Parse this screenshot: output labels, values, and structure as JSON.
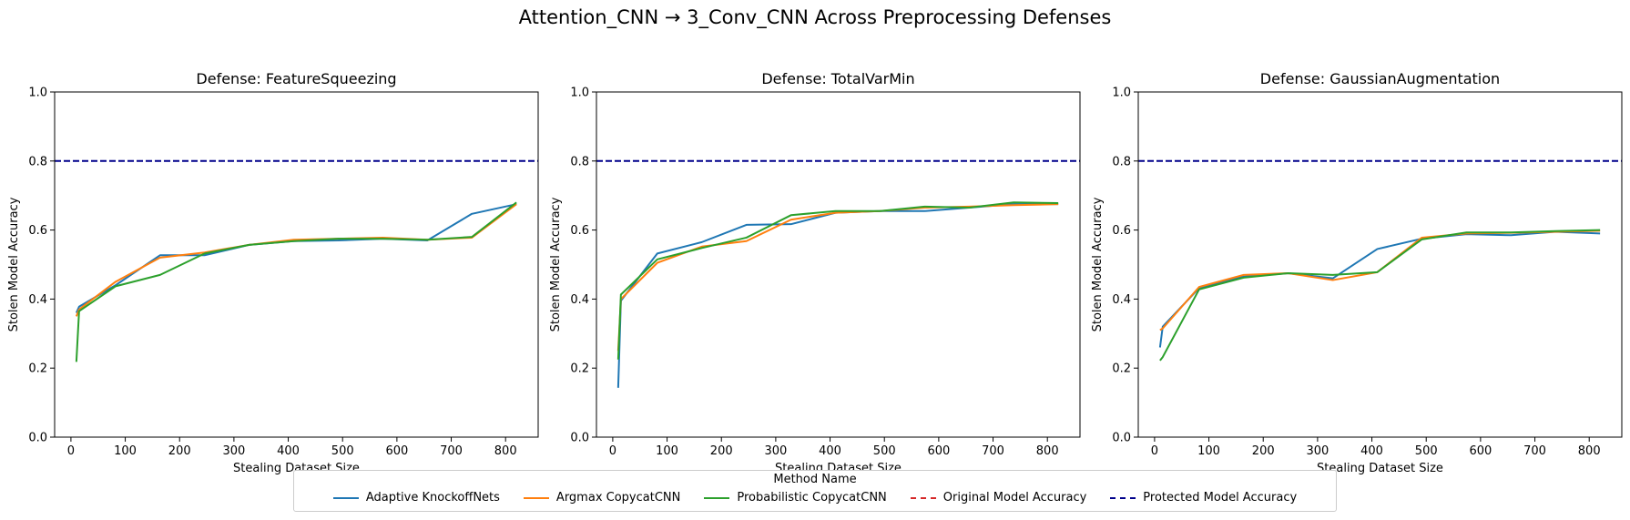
{
  "figure": {
    "suptitle": "Attention_CNN → 3_Conv_CNN Across Preprocessing Defenses"
  },
  "legend": {
    "title": "Method Name",
    "entries": [
      {
        "label": "Adaptive KnockoffNets",
        "color": "#1f77b4",
        "style": "solid"
      },
      {
        "label": "Argmax CopycatCNN",
        "color": "#ff7f0e",
        "style": "solid"
      },
      {
        "label": "Probabilistic CopycatCNN",
        "color": "#2ca02c",
        "style": "solid"
      },
      {
        "label": "Original Model Accuracy",
        "color": "#d62728",
        "style": "dashed"
      },
      {
        "label": "Protected Model Accuracy",
        "color": "#00008b",
        "style": "dashed"
      }
    ]
  },
  "chart_data": [
    {
      "type": "line",
      "title": "Defense: FeatureSqueezing",
      "xlabel": "Stealing Dataset Size",
      "ylabel": "Stolen Model Accuracy",
      "xlim": [
        -30,
        860
      ],
      "ylim": [
        0,
        1
      ],
      "xticks": [
        0,
        100,
        200,
        300,
        400,
        500,
        600,
        700,
        800
      ],
      "yticks": [
        0.0,
        0.2,
        0.4,
        0.6,
        0.8,
        1.0
      ],
      "hlines": [
        {
          "name": "Protected Model Accuracy",
          "y": 0.8,
          "color": "#00008b"
        }
      ],
      "series": [
        {
          "name": "Adaptive KnockoffNets",
          "color": "#1f77b4",
          "x": [
            10,
            15,
            82,
            164,
            246,
            328,
            410,
            492,
            574,
            656,
            738,
            820
          ],
          "y": [
            0.36,
            0.378,
            0.44,
            0.527,
            0.527,
            0.557,
            0.568,
            0.57,
            0.575,
            0.57,
            0.647,
            0.675
          ]
        },
        {
          "name": "Argmax CopycatCNN",
          "color": "#ff7f0e",
          "x": [
            10,
            15,
            82,
            164,
            246,
            328,
            410,
            492,
            574,
            656,
            738,
            820
          ],
          "y": [
            0.35,
            0.37,
            0.45,
            0.52,
            0.535,
            0.557,
            0.572,
            0.575,
            0.578,
            0.572,
            0.578,
            0.675
          ]
        },
        {
          "name": "Probabilistic CopycatCNN",
          "color": "#2ca02c",
          "x": [
            10,
            15,
            82,
            164,
            246,
            328,
            410,
            492,
            574,
            656,
            738,
            820
          ],
          "y": [
            0.218,
            0.365,
            0.437,
            0.47,
            0.532,
            0.557,
            0.568,
            0.575,
            0.575,
            0.572,
            0.58,
            0.68
          ]
        }
      ]
    },
    {
      "type": "line",
      "title": "Defense: TotalVarMin",
      "xlabel": "Stealing Dataset Size",
      "ylabel": "Stolen Model Accuracy",
      "xlim": [
        -30,
        860
      ],
      "ylim": [
        0,
        1
      ],
      "xticks": [
        0,
        100,
        200,
        300,
        400,
        500,
        600,
        700,
        800
      ],
      "yticks": [
        0.0,
        0.2,
        0.4,
        0.6,
        0.8,
        1.0
      ],
      "hlines": [
        {
          "name": "Protected Model Accuracy",
          "y": 0.8,
          "color": "#00008b"
        }
      ],
      "series": [
        {
          "name": "Adaptive KnockoffNets",
          "color": "#1f77b4",
          "x": [
            10,
            15,
            82,
            164,
            246,
            328,
            410,
            492,
            574,
            656,
            738,
            820
          ],
          "y": [
            0.143,
            0.395,
            0.532,
            0.565,
            0.615,
            0.617,
            0.65,
            0.655,
            0.655,
            0.665,
            0.675,
            0.675
          ]
        },
        {
          "name": "Argmax CopycatCNN",
          "color": "#ff7f0e",
          "x": [
            10,
            15,
            82,
            164,
            246,
            328,
            410,
            492,
            574,
            656,
            738,
            820
          ],
          "y": [
            0.25,
            0.4,
            0.505,
            0.552,
            0.568,
            0.63,
            0.65,
            0.655,
            0.665,
            0.668,
            0.672,
            0.675
          ]
        },
        {
          "name": "Probabilistic CopycatCNN",
          "color": "#2ca02c",
          "x": [
            10,
            15,
            82,
            164,
            246,
            328,
            410,
            492,
            574,
            656,
            738,
            820
          ],
          "y": [
            0.225,
            0.413,
            0.515,
            0.548,
            0.578,
            0.643,
            0.655,
            0.655,
            0.668,
            0.665,
            0.68,
            0.678
          ]
        }
      ]
    },
    {
      "type": "line",
      "title": "Defense: GaussianAugmentation",
      "xlabel": "Stealing Dataset Size",
      "ylabel": "Stolen Model Accuracy",
      "xlim": [
        -30,
        860
      ],
      "ylim": [
        0,
        1
      ],
      "xticks": [
        0,
        100,
        200,
        300,
        400,
        500,
        600,
        700,
        800
      ],
      "yticks": [
        0.0,
        0.2,
        0.4,
        0.6,
        0.8,
        1.0
      ],
      "hlines": [
        {
          "name": "Protected Model Accuracy",
          "y": 0.8,
          "color": "#00008b"
        }
      ],
      "series": [
        {
          "name": "Adaptive KnockoffNets",
          "color": "#1f77b4",
          "x": [
            10,
            15,
            82,
            164,
            246,
            328,
            410,
            492,
            574,
            656,
            738,
            820
          ],
          "y": [
            0.26,
            0.32,
            0.432,
            0.465,
            0.475,
            0.46,
            0.545,
            0.575,
            0.588,
            0.585,
            0.595,
            0.59
          ]
        },
        {
          "name": "Argmax CopycatCNN",
          "color": "#ff7f0e",
          "x": [
            10,
            15,
            82,
            164,
            246,
            328,
            410,
            492,
            574,
            656,
            738,
            820
          ],
          "y": [
            0.31,
            0.315,
            0.435,
            0.47,
            0.475,
            0.455,
            0.478,
            0.578,
            0.59,
            0.592,
            0.595,
            0.598
          ]
        },
        {
          "name": "Probabilistic CopycatCNN",
          "color": "#2ca02c",
          "x": [
            10,
            15,
            82,
            164,
            246,
            328,
            410,
            492,
            574,
            656,
            738,
            820
          ],
          "y": [
            0.222,
            0.232,
            0.428,
            0.462,
            0.475,
            0.47,
            0.478,
            0.573,
            0.593,
            0.593,
            0.597,
            0.6
          ]
        }
      ]
    }
  ]
}
